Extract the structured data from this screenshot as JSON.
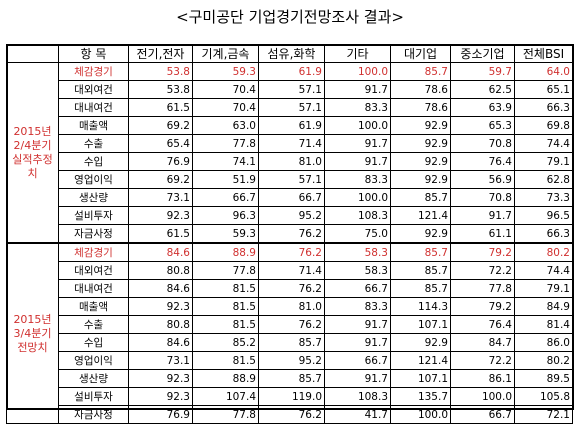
{
  "title": "<구미공단 기업경기전망조사 결과>",
  "headers": [
    "",
    "항 목",
    "전기,전자",
    "기계,금속",
    "섬유,화학",
    "기타",
    "대기업",
    "중소기업",
    "전체BSI"
  ],
  "periods": [
    {
      "label": "2015년 2/4분기 실적추정치",
      "rows": [
        {
          "item": "체감경기",
          "values": [
            "53.8",
            "59.3",
            "61.9",
            "100.0",
            "85.7",
            "59.7",
            "64.0"
          ],
          "highlight": true
        },
        {
          "item": "대외여건",
          "values": [
            "53.8",
            "70.4",
            "57.1",
            "91.7",
            "78.6",
            "62.5",
            "65.1"
          ]
        },
        {
          "item": "대내여건",
          "values": [
            "61.5",
            "70.4",
            "57.1",
            "83.3",
            "78.6",
            "63.9",
            "66.3"
          ]
        },
        {
          "item": "매출액",
          "values": [
            "69.2",
            "63.0",
            "61.9",
            "100.0",
            "92.9",
            "65.3",
            "69.8"
          ]
        },
        {
          "item": "수출",
          "values": [
            "65.4",
            "77.8",
            "71.4",
            "91.7",
            "92.9",
            "70.8",
            "74.4"
          ]
        },
        {
          "item": "수입",
          "values": [
            "76.9",
            "74.1",
            "81.0",
            "91.7",
            "92.9",
            "76.4",
            "79.1"
          ]
        },
        {
          "item": "영업이익",
          "values": [
            "69.2",
            "51.9",
            "57.1",
            "83.3",
            "92.9",
            "56.9",
            "62.8"
          ]
        },
        {
          "item": "생산량",
          "values": [
            "73.1",
            "66.7",
            "66.7",
            "100.0",
            "85.7",
            "70.8",
            "73.3"
          ]
        },
        {
          "item": "설비투자",
          "values": [
            "92.3",
            "96.3",
            "95.2",
            "108.3",
            "121.4",
            "91.7",
            "96.5"
          ]
        },
        {
          "item": "자금사정",
          "values": [
            "61.5",
            "59.3",
            "76.2",
            "75.0",
            "92.9",
            "61.1",
            "66.3"
          ]
        }
      ]
    },
    {
      "label": "2015년 3/4분기 전망치",
      "rows": [
        {
          "item": "체감경기",
          "values": [
            "84.6",
            "88.9",
            "76.2",
            "58.3",
            "85.7",
            "79.2",
            "80.2"
          ],
          "highlight": true
        },
        {
          "item": "대외여건",
          "values": [
            "80.8",
            "77.8",
            "71.4",
            "58.3",
            "85.7",
            "72.2",
            "74.4"
          ]
        },
        {
          "item": "대내여건",
          "values": [
            "84.6",
            "81.5",
            "76.2",
            "66.7",
            "85.7",
            "77.8",
            "79.1"
          ]
        },
        {
          "item": "매출액",
          "values": [
            "92.3",
            "81.5",
            "81.0",
            "83.3",
            "114.3",
            "79.2",
            "84.9"
          ]
        },
        {
          "item": "수출",
          "values": [
            "80.8",
            "81.5",
            "76.2",
            "91.7",
            "107.1",
            "76.4",
            "81.4"
          ]
        },
        {
          "item": "수입",
          "values": [
            "84.6",
            "85.2",
            "85.7",
            "91.7",
            "92.9",
            "84.7",
            "86.0"
          ]
        },
        {
          "item": "영업이익",
          "values": [
            "73.1",
            "81.5",
            "95.2",
            "66.7",
            "121.4",
            "72.2",
            "80.2"
          ]
        },
        {
          "item": "생산량",
          "values": [
            "92.3",
            "88.9",
            "85.7",
            "91.7",
            "107.1",
            "86.1",
            "89.5"
          ]
        },
        {
          "item": "설비투자",
          "values": [
            "92.3",
            "107.4",
            "119.0",
            "108.3",
            "135.7",
            "100.0",
            "105.8"
          ]
        },
        {
          "item": "자금사정",
          "values": [
            "76.9",
            "77.8",
            "76.2",
            "41.7",
            "100.0",
            "66.7",
            "72.1"
          ]
        }
      ]
    }
  ]
}
